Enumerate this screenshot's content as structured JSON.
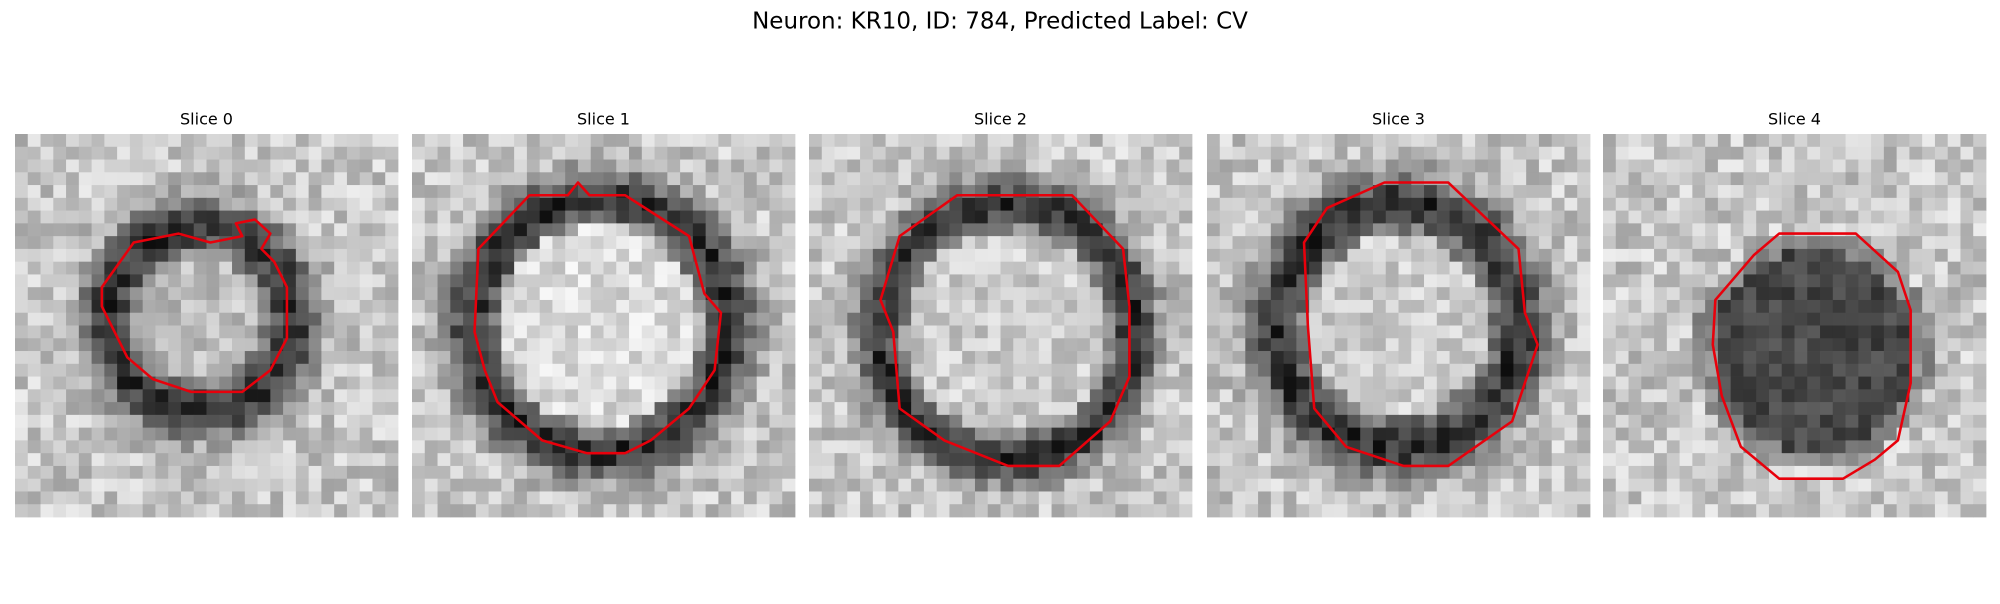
{
  "header": {
    "title": "Neuron: KR10, ID: 784, Predicted Label: CV"
  },
  "panels": [
    {
      "title": "Slice 0"
    },
    {
      "title": "Slice 1"
    },
    {
      "title": "Slice 2"
    },
    {
      "title": "Slice 3"
    },
    {
      "title": "Slice 4"
    }
  ]
}
